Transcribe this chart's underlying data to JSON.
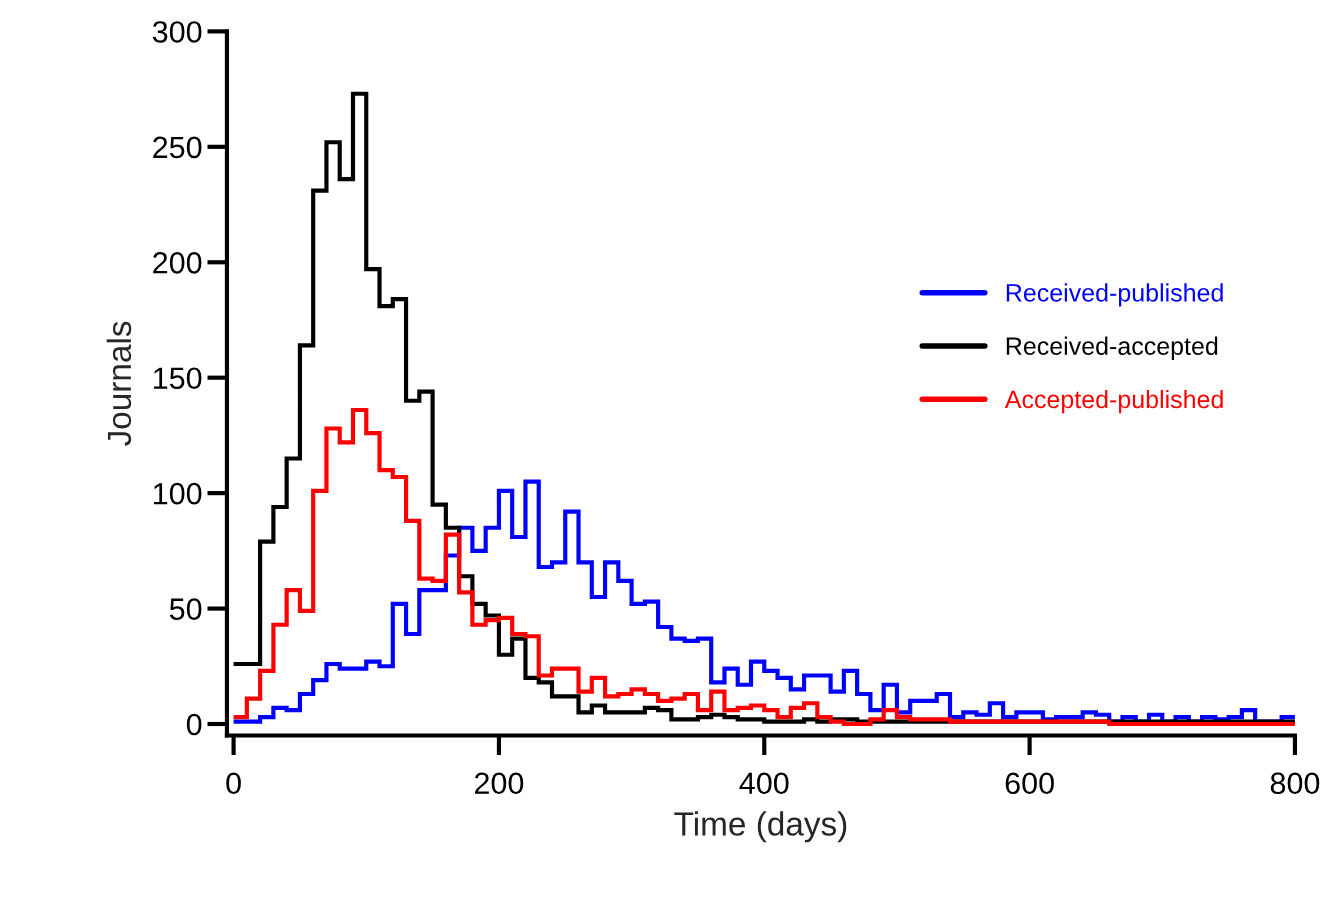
{
  "chart_data": {
    "type": "histogram",
    "xlabel": "Time (days)",
    "ylabel": "Journals",
    "bins": [
      0,
      10,
      20,
      30,
      40,
      50,
      60,
      70,
      80,
      90,
      100,
      110,
      120,
      130,
      140,
      150,
      160,
      170,
      180,
      190,
      200,
      210,
      220,
      230,
      240,
      250,
      260,
      270,
      280,
      290,
      300,
      310,
      320,
      330,
      340,
      350,
      360,
      370,
      380,
      390,
      400,
      410,
      420,
      430,
      440,
      450,
      460,
      470,
      480,
      490,
      500,
      510,
      520,
      530,
      540,
      550,
      560,
      570,
      580,
      590,
      600,
      610,
      620,
      630,
      640,
      650,
      660,
      670,
      680,
      690,
      700,
      710,
      720,
      730,
      740,
      750,
      760,
      770,
      780,
      790,
      800
    ],
    "series": [
      {
        "name": "Received-published",
        "color": "#0000ff",
        "values": [
          1,
          1,
          3,
          7,
          6,
          13,
          19,
          26,
          24,
          24,
          27,
          25,
          52,
          39,
          58,
          58,
          73,
          85,
          75,
          85,
          101,
          81,
          105,
          68,
          70,
          92,
          70,
          55,
          70,
          62,
          52,
          53,
          42,
          37,
          36,
          37,
          18,
          24,
          17,
          27,
          23,
          20,
          15,
          21,
          21,
          14,
          23,
          13,
          6,
          17,
          5,
          10,
          10,
          13,
          3,
          5,
          4,
          9,
          3,
          5,
          5,
          2,
          3,
          3,
          5,
          4,
          1,
          3,
          1,
          4,
          1,
          3,
          1,
          3,
          2,
          3,
          6,
          1,
          1,
          3
        ]
      },
      {
        "name": "Received-accepted",
        "color": "#000000",
        "values": [
          26,
          26,
          79,
          94,
          115,
          164,
          231,
          252,
          236,
          273,
          197,
          181,
          184,
          140,
          144,
          95,
          85,
          64,
          52,
          47,
          30,
          37,
          20,
          18,
          12,
          12,
          5,
          8,
          5,
          5,
          5,
          7,
          6,
          2,
          2,
          3,
          4,
          3,
          2,
          2,
          1,
          1,
          1,
          2,
          1,
          2,
          2,
          1,
          1,
          1,
          1,
          1,
          1,
          1,
          1,
          1,
          1,
          1,
          1,
          1,
          1,
          1,
          1,
          1,
          1,
          1,
          1,
          1,
          1,
          1,
          1,
          1,
          1,
          1,
          1,
          1,
          1,
          1,
          1,
          1
        ]
      },
      {
        "name": "Accepted-published",
        "color": "#ff0000",
        "values": [
          3,
          11,
          23,
          43,
          58,
          49,
          101,
          128,
          122,
          136,
          126,
          110,
          107,
          88,
          63,
          62,
          82,
          57,
          43,
          45,
          46,
          39,
          38,
          21,
          24,
          24,
          14,
          20,
          12,
          13,
          15,
          13,
          10,
          11,
          13,
          6,
          14,
          6,
          7,
          8,
          6,
          3,
          7,
          9,
          3,
          1,
          0,
          0,
          2,
          6,
          3,
          2,
          2,
          2,
          1,
          1,
          1,
          1,
          1,
          1,
          1,
          1,
          1,
          1,
          1,
          1,
          0,
          0,
          0,
          0,
          0,
          0,
          0,
          0,
          0,
          0,
          0,
          0,
          0,
          0
        ]
      }
    ],
    "xlim": [
      -5,
      800
    ],
    "ylim": [
      -5,
      300
    ],
    "xticks": [
      0,
      200,
      400,
      600,
      800
    ],
    "yticks": [
      0,
      50,
      100,
      150,
      200,
      250,
      300
    ],
    "grid": false,
    "legend": "right"
  }
}
